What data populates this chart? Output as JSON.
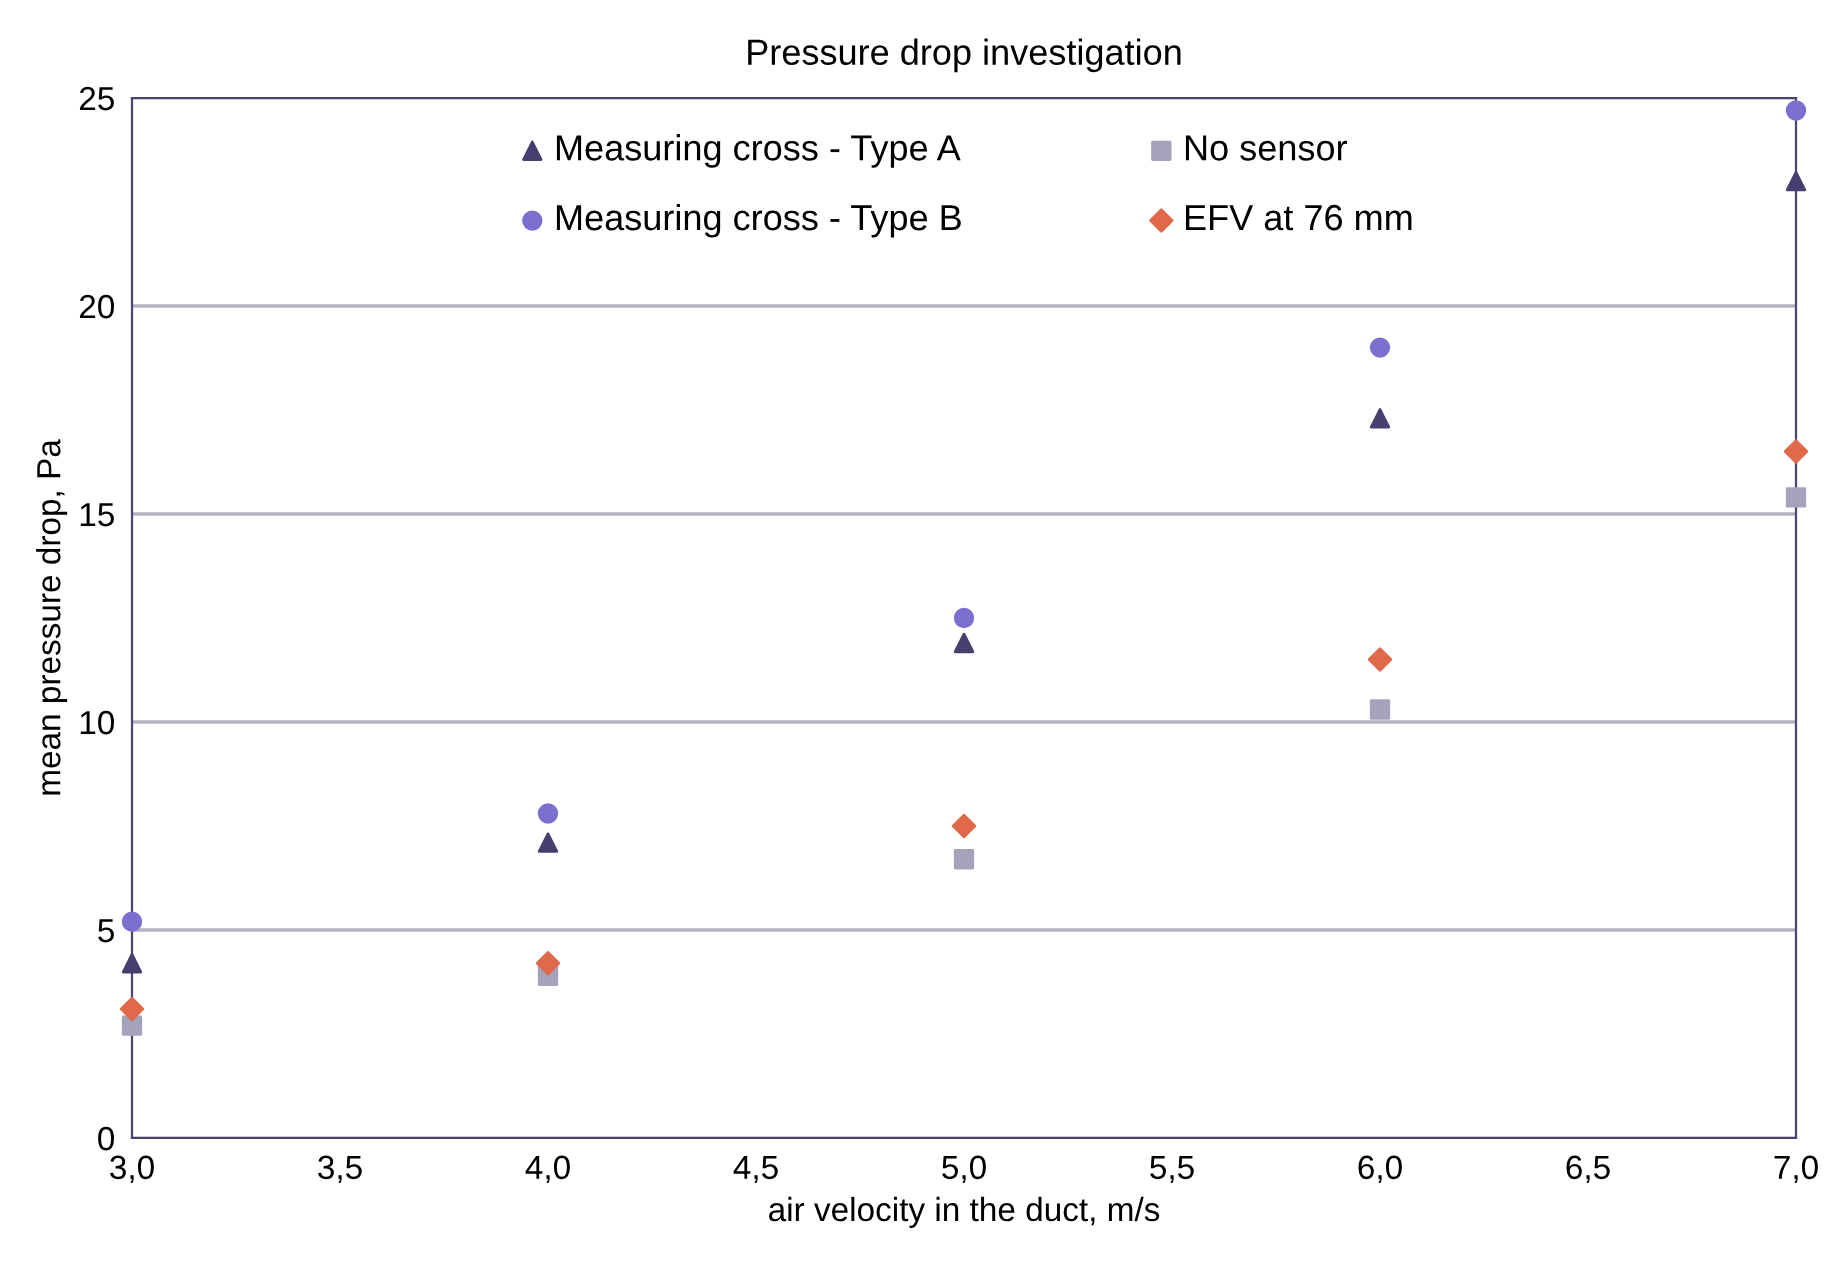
{
  "chart_data": {
    "type": "scatter",
    "title": "Pressure drop investigation",
    "xlabel": "air velocity in the duct, m/s",
    "ylabel": "mean pressure drop, Pa",
    "x": [
      3,
      4,
      5,
      6,
      7
    ],
    "series": [
      {
        "name": "Measuring cross - Type A",
        "color": "#463f6f",
        "marker": "triangle",
        "values": [
          4.2,
          7.1,
          11.9,
          17.3,
          23.0
        ]
      },
      {
        "name": "Measuring cross - Type B",
        "color": "#7b6fd0",
        "marker": "circle",
        "values": [
          5.2,
          7.8,
          12.5,
          19.0,
          24.7
        ]
      },
      {
        "name": "No sensor",
        "color": "#a5a2bb",
        "marker": "square",
        "values": [
          2.7,
          3.9,
          6.7,
          10.3,
          15.4
        ]
      },
      {
        "name": "EFV at 76 mm",
        "color": "#e0684b",
        "marker": "diamond",
        "values": [
          3.1,
          4.2,
          7.5,
          11.5,
          16.5
        ]
      }
    ],
    "xlim": [
      3,
      7
    ],
    "xticks": [
      {
        "value": 3,
        "label": "3,0"
      },
      {
        "value": 3.5,
        "label": "3,5"
      },
      {
        "value": 4,
        "label": "4,0"
      },
      {
        "value": 4.5,
        "label": "4,5"
      },
      {
        "value": 5,
        "label": "5,0"
      },
      {
        "value": 5.5,
        "label": "5,5"
      },
      {
        "value": 6,
        "label": "6,0"
      },
      {
        "value": 6.5,
        "label": "6,5"
      },
      {
        "value": 7,
        "label": "7,0"
      }
    ],
    "ylim": [
      0,
      25
    ],
    "yticks": [
      0,
      5,
      10,
      15,
      20,
      25
    ],
    "grid": "y",
    "legend": "top"
  }
}
